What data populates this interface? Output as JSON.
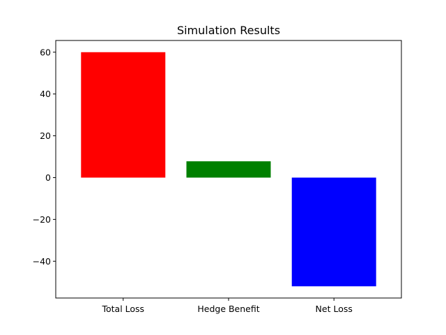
{
  "chart_data": {
    "type": "bar",
    "title": "Simulation Results",
    "xlabel": "",
    "ylabel": "",
    "categories": [
      "Total Loss",
      "Hedge Benefit",
      "Net Loss"
    ],
    "values": [
      60,
      7.8,
      -52
    ],
    "colors": [
      "#ff0000",
      "#008000",
      "#0000ff"
    ],
    "ylim": [
      -57.6,
      65.6
    ],
    "yticks": [
      -40,
      -20,
      0,
      20,
      40,
      60
    ],
    "ytick_labels": [
      "−40",
      "−20",
      "0",
      "20",
      "40",
      "60"
    ],
    "grid": false
  }
}
